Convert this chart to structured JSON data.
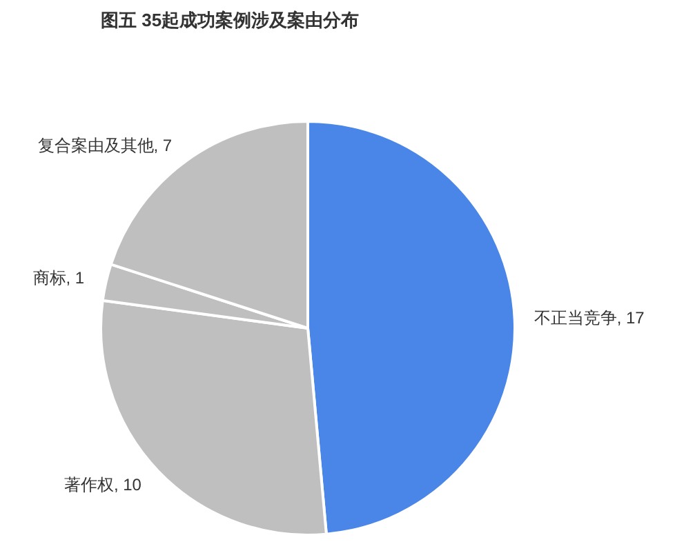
{
  "chart_data": {
    "type": "pie",
    "title": "图五 35起成功案例涉及案由分布",
    "categories": [
      "不正当竞争",
      "著作权",
      "商标",
      "复合案由及其他"
    ],
    "values": [
      17,
      10,
      1,
      7
    ],
    "value_labels": [
      ", 17",
      ", 10",
      ", 1",
      ", 7"
    ],
    "colors": [
      "#4a86e8",
      "#bfbfbf",
      "#bfbfbf",
      "#bfbfbf"
    ]
  }
}
